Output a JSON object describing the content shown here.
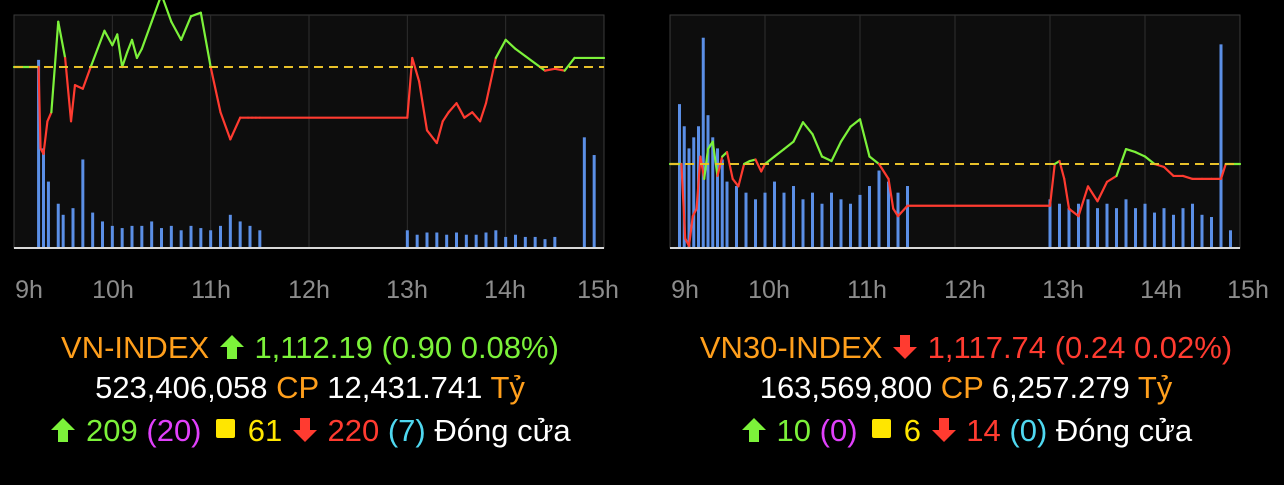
{
  "colors": {
    "up": "#7cf23a",
    "down": "#ff3b30",
    "reference": "#e8c12a",
    "volume": "#5b8fe6",
    "index_name": "#ff9f1c",
    "unchanged": "#ffe600",
    "ceiling": "#e040fb",
    "floor": "#4fd8f0"
  },
  "chart_data": [
    {
      "type": "line",
      "x_ticks": [
        "9h",
        "10h",
        "11h",
        "12h",
        "13h",
        "14h",
        "15h"
      ],
      "grid": true,
      "reference_line": "dashed",
      "ylim": [
        -1,
        1
      ],
      "price_series": {
        "x": [
          9.0,
          9.25,
          9.27,
          9.3,
          9.34,
          9.38,
          9.45,
          9.52,
          9.58,
          9.62,
          9.7,
          9.78,
          9.85,
          9.92,
          10.0,
          10.05,
          10.1,
          10.15,
          10.2,
          10.25,
          10.3,
          10.4,
          10.5,
          10.6,
          10.7,
          10.8,
          10.9,
          11.0,
          11.1,
          11.2,
          11.3,
          11.38,
          11.42,
          11.46,
          11.5,
          13.0,
          13.05,
          13.12,
          13.2,
          13.3,
          13.36,
          13.42,
          13.5,
          13.58,
          13.66,
          13.74,
          13.8,
          13.9,
          14.0,
          14.1,
          14.2,
          14.3,
          14.4,
          14.5,
          14.6,
          14.7,
          15.0
        ],
        "y": [
          0.0,
          0.0,
          -0.45,
          -0.48,
          -0.3,
          -0.25,
          0.25,
          0.05,
          -0.3,
          -0.1,
          -0.12,
          0.0,
          0.1,
          0.2,
          0.12,
          0.18,
          0.0,
          0.08,
          0.15,
          0.05,
          0.1,
          0.25,
          0.4,
          0.25,
          0.15,
          0.28,
          0.3,
          0.0,
          -0.25,
          -0.4,
          -0.28,
          -0.28,
          -0.28,
          -0.28,
          -0.28,
          -0.28,
          0.05,
          -0.08,
          -0.35,
          -0.42,
          -0.3,
          -0.25,
          -0.2,
          -0.28,
          -0.25,
          -0.3,
          -0.2,
          0.05,
          0.15,
          0.1,
          0.06,
          0.02,
          -0.02,
          -0.01,
          -0.02,
          0.05,
          0.05
        ]
      },
      "volume_series": {
        "x": [
          9.25,
          9.3,
          9.35,
          9.45,
          9.5,
          9.6,
          9.7,
          9.8,
          9.9,
          10.0,
          10.1,
          10.2,
          10.3,
          10.4,
          10.5,
          10.6,
          10.7,
          10.8,
          10.9,
          11.0,
          11.1,
          11.2,
          11.3,
          11.4,
          11.5,
          13.0,
          13.1,
          13.2,
          13.3,
          13.4,
          13.5,
          13.6,
          13.7,
          13.8,
          13.9,
          14.0,
          14.1,
          14.2,
          14.3,
          14.4,
          14.5,
          14.8,
          14.9
        ],
        "values": [
          0.85,
          0.45,
          0.3,
          0.2,
          0.15,
          0.18,
          0.4,
          0.16,
          0.12,
          0.1,
          0.09,
          0.1,
          0.1,
          0.12,
          0.09,
          0.1,
          0.08,
          0.1,
          0.09,
          0.08,
          0.1,
          0.15,
          0.12,
          0.1,
          0.08,
          0.08,
          0.06,
          0.07,
          0.07,
          0.06,
          0.07,
          0.06,
          0.06,
          0.07,
          0.08,
          0.05,
          0.06,
          0.05,
          0.05,
          0.04,
          0.05,
          0.5,
          0.42
        ]
      }
    },
    {
      "type": "line",
      "x_ticks": [
        "9h",
        "10h",
        "11h",
        "12h",
        "13h",
        "14h",
        "15h"
      ],
      "grid": true,
      "reference_line": "dashed",
      "ylim": [
        -1,
        1
      ],
      "price_series": {
        "x": [
          9.0,
          9.12,
          9.16,
          9.2,
          9.24,
          9.28,
          9.32,
          9.36,
          9.4,
          9.45,
          9.5,
          9.55,
          9.6,
          9.66,
          9.72,
          9.78,
          9.84,
          9.9,
          9.96,
          10.0,
          10.1,
          10.2,
          10.3,
          10.4,
          10.5,
          10.6,
          10.7,
          10.8,
          10.9,
          11.0,
          11.1,
          11.2,
          11.3,
          11.35,
          11.4,
          11.5,
          13.0,
          13.05,
          13.1,
          13.15,
          13.2,
          13.3,
          13.4,
          13.5,
          13.6,
          13.7,
          13.8,
          13.9,
          14.0,
          14.1,
          14.2,
          14.3,
          14.4,
          14.5,
          14.6,
          14.7,
          14.8,
          14.85,
          15.0
        ],
        "y": [
          0.0,
          0.0,
          -0.5,
          -0.55,
          -0.35,
          -0.3,
          0.05,
          -0.1,
          0.1,
          0.15,
          -0.08,
          0.05,
          0.08,
          -0.1,
          -0.15,
          0.0,
          0.02,
          0.03,
          -0.05,
          0.0,
          0.05,
          0.1,
          0.15,
          0.28,
          0.2,
          0.05,
          0.02,
          0.15,
          0.25,
          0.3,
          0.05,
          0.0,
          -0.1,
          -0.3,
          -0.35,
          -0.28,
          -0.28,
          0.0,
          0.02,
          -0.1,
          -0.3,
          -0.35,
          -0.15,
          -0.25,
          -0.12,
          -0.08,
          0.1,
          0.08,
          0.05,
          0.0,
          -0.02,
          -0.08,
          -0.08,
          -0.1,
          -0.1,
          -0.1,
          -0.1,
          0.0,
          0.0
        ]
      },
      "volume_series": {
        "x": [
          9.1,
          9.15,
          9.2,
          9.25,
          9.3,
          9.35,
          9.4,
          9.45,
          9.5,
          9.55,
          9.6,
          9.7,
          9.8,
          9.9,
          10.0,
          10.1,
          10.2,
          10.3,
          10.4,
          10.5,
          10.6,
          10.7,
          10.8,
          10.9,
          11.0,
          11.1,
          11.2,
          11.3,
          11.4,
          11.5,
          13.0,
          13.1,
          13.2,
          13.3,
          13.4,
          13.5,
          13.6,
          13.7,
          13.8,
          13.9,
          14.0,
          14.1,
          14.2,
          14.3,
          14.4,
          14.5,
          14.6,
          14.7,
          14.8,
          14.9
        ],
        "values": [
          0.65,
          0.55,
          0.45,
          0.5,
          0.55,
          0.95,
          0.6,
          0.5,
          0.45,
          0.4,
          0.3,
          0.28,
          0.25,
          0.22,
          0.25,
          0.3,
          0.25,
          0.28,
          0.22,
          0.25,
          0.2,
          0.25,
          0.22,
          0.2,
          0.24,
          0.28,
          0.35,
          0.3,
          0.25,
          0.28,
          0.22,
          0.2,
          0.18,
          0.2,
          0.22,
          0.18,
          0.2,
          0.18,
          0.22,
          0.18,
          0.2,
          0.16,
          0.18,
          0.15,
          0.18,
          0.2,
          0.15,
          0.14,
          0.92,
          0.08
        ]
      }
    }
  ],
  "vn_index": {
    "name": "VN-INDEX",
    "value": "1,112.19",
    "change": "(0.90 0.08%)",
    "volume": "523,406,058",
    "volume_unit": "CP",
    "turnover": "12,431.741",
    "turnover_unit": "Tỷ",
    "advancers": "209",
    "ceiling_count": "(20)",
    "unchanged": "61",
    "decliners": "220",
    "floor_count": "(7)",
    "status": "Đóng cửa"
  },
  "vn30_index": {
    "name": "VN30-INDEX",
    "value": "1,117.74",
    "change": "(0.24 0.02%)",
    "volume": "163,569,800",
    "volume_unit": "CP",
    "turnover": "6,257.279",
    "turnover_unit": "Tỷ",
    "advancers": "10",
    "ceiling_count": "(0)",
    "unchanged": "6",
    "decliners": "14",
    "floor_count": "(0)",
    "status": "Đóng cửa"
  }
}
